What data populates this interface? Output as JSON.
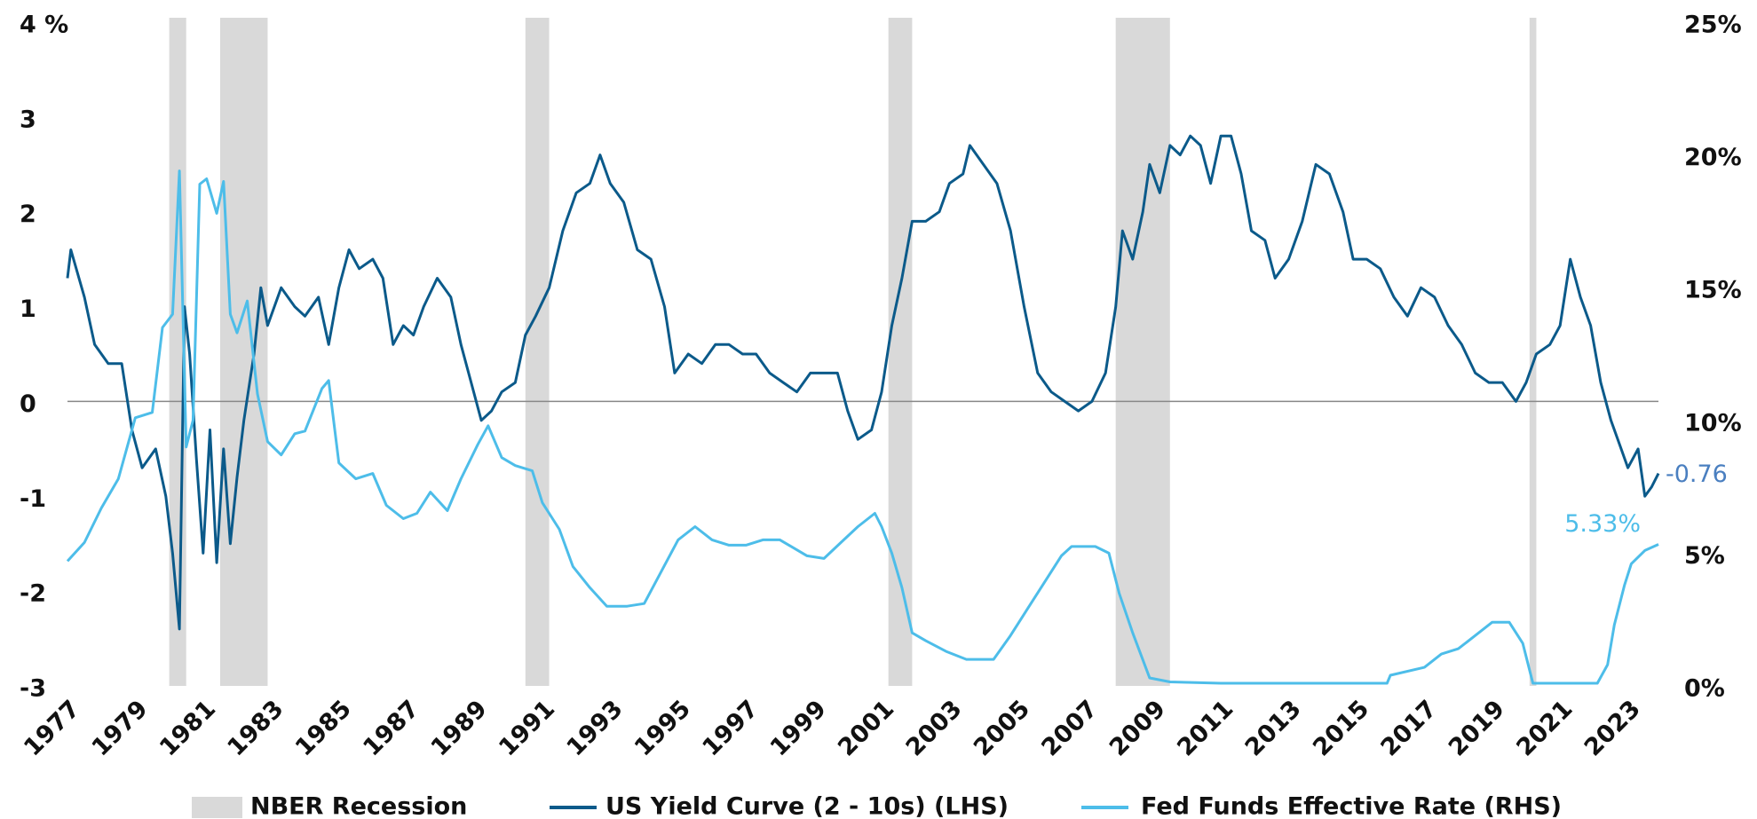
{
  "chart_data": {
    "type": "line",
    "xlim": [
      1977,
      2023.9
    ],
    "xticks": [
      1977,
      1979,
      1981,
      1983,
      1985,
      1987,
      1989,
      1991,
      1993,
      1995,
      1997,
      1999,
      2001,
      2003,
      2005,
      2007,
      2009,
      2011,
      2013,
      2015,
      2017,
      2019,
      2021,
      2023
    ],
    "ylim": [
      -3,
      4
    ],
    "yticks": [
      -3,
      -2,
      -1,
      0,
      1,
      2,
      3,
      {
        "value": 4,
        "label": "4 %"
      }
    ],
    "y2lim": [
      0,
      25
    ],
    "y2ticks": [
      {
        "value": 0,
        "label": "0%"
      },
      {
        "value": 5,
        "label": "5%"
      },
      {
        "value": 10,
        "label": "10%"
      },
      {
        "value": 15,
        "label": "15%"
      },
      {
        "value": 20,
        "label": "20%"
      },
      {
        "value": 25,
        "label": "25%"
      }
    ],
    "zero_line": true,
    "recessions": {
      "name": "NBER Recession",
      "color": "#d9d9d9",
      "spans": [
        [
          1980.0,
          1980.5
        ],
        [
          1981.5,
          1982.9
        ],
        [
          1990.5,
          1991.2
        ],
        [
          2001.2,
          2001.9
        ],
        [
          2007.9,
          2009.5
        ],
        [
          2020.1,
          2020.3
        ]
      ]
    },
    "series": [
      {
        "name": "US Yield Curve (2 - 10s) (LHS)",
        "color": "#0b5a8a",
        "axis": "y",
        "end_label": "-0.76",
        "end_label_color": "#4a7fc0",
        "x": [
          1977.0,
          1977.1,
          1977.5,
          1977.8,
          1978.2,
          1978.6,
          1978.9,
          1979.2,
          1979.6,
          1979.9,
          1980.1,
          1980.3,
          1980.45,
          1980.6,
          1980.8,
          1981.0,
          1981.2,
          1981.4,
          1981.6,
          1981.8,
          1982.0,
          1982.2,
          1982.5,
          1982.7,
          1982.9,
          1983.3,
          1983.7,
          1984.0,
          1984.4,
          1984.7,
          1985.0,
          1985.3,
          1985.6,
          1986.0,
          1986.3,
          1986.6,
          1986.9,
          1987.2,
          1987.5,
          1987.9,
          1988.3,
          1988.6,
          1988.9,
          1989.2,
          1989.5,
          1989.8,
          1990.2,
          1990.5,
          1990.8,
          1991.2,
          1991.6,
          1992.0,
          1992.4,
          1992.7,
          1993.0,
          1993.4,
          1993.8,
          1994.2,
          1994.6,
          1994.9,
          1995.3,
          1995.7,
          1996.1,
          1996.5,
          1996.9,
          1997.3,
          1997.7,
          1998.1,
          1998.5,
          1998.9,
          1999.3,
          1999.7,
          2000.0,
          2000.3,
          2000.7,
          2001.0,
          2001.3,
          2001.6,
          2001.9,
          2002.3,
          2002.7,
          2003.0,
          2003.4,
          2003.6,
          2004.0,
          2004.4,
          2004.8,
          2005.2,
          2005.6,
          2006.0,
          2006.4,
          2006.8,
          2007.2,
          2007.6,
          2007.9,
          2008.1,
          2008.4,
          2008.7,
          2008.9,
          2009.2,
          2009.5,
          2009.8,
          2010.1,
          2010.4,
          2010.7,
          2011.0,
          2011.3,
          2011.6,
          2011.9,
          2012.3,
          2012.6,
          2013.0,
          2013.4,
          2013.8,
          2014.2,
          2014.6,
          2014.9,
          2015.3,
          2015.7,
          2016.1,
          2016.5,
          2016.9,
          2017.3,
          2017.7,
          2018.1,
          2018.5,
          2018.9,
          2019.3,
          2019.7,
          2020.0,
          2020.3,
          2020.7,
          2021.0,
          2021.3,
          2021.6,
          2021.9,
          2022.2,
          2022.5,
          2022.8,
          2023.0,
          2023.3,
          2023.5,
          2023.7,
          2023.9
        ],
        "values": [
          1.3,
          1.6,
          1.1,
          0.6,
          0.4,
          0.4,
          -0.3,
          -0.7,
          -0.5,
          -1.0,
          -1.6,
          -2.4,
          1.0,
          0.5,
          -0.6,
          -1.6,
          -0.3,
          -1.7,
          -0.5,
          -1.5,
          -0.8,
          -0.2,
          0.5,
          1.2,
          0.8,
          1.2,
          1.0,
          0.9,
          1.1,
          0.6,
          1.2,
          1.6,
          1.4,
          1.5,
          1.3,
          0.6,
          0.8,
          0.7,
          1.0,
          1.3,
          1.1,
          0.6,
          0.2,
          -0.2,
          -0.1,
          0.1,
          0.2,
          0.7,
          0.9,
          1.2,
          1.8,
          2.2,
          2.3,
          2.6,
          2.3,
          2.1,
          1.6,
          1.5,
          1.0,
          0.3,
          0.5,
          0.4,
          0.6,
          0.6,
          0.5,
          0.5,
          0.3,
          0.2,
          0.1,
          0.3,
          0.3,
          0.3,
          -0.1,
          -0.4,
          -0.3,
          0.1,
          0.8,
          1.3,
          1.9,
          1.9,
          2.0,
          2.3,
          2.4,
          2.7,
          2.5,
          2.3,
          1.8,
          1.0,
          0.3,
          0.1,
          0.0,
          -0.1,
          0.0,
          0.3,
          1.0,
          1.8,
          1.5,
          2.0,
          2.5,
          2.2,
          2.7,
          2.6,
          2.8,
          2.7,
          2.3,
          2.8,
          2.8,
          2.4,
          1.8,
          1.7,
          1.3,
          1.5,
          1.9,
          2.5,
          2.4,
          2.0,
          1.5,
          1.5,
          1.4,
          1.1,
          0.9,
          1.2,
          1.1,
          0.8,
          0.6,
          0.3,
          0.2,
          0.2,
          0.0,
          0.2,
          0.5,
          0.6,
          0.8,
          1.5,
          1.1,
          0.8,
          0.2,
          -0.2,
          -0.5,
          -0.7,
          -0.5,
          -1.0,
          -0.9,
          -0.76
        ]
      },
      {
        "name": "Fed Funds Effective Rate (RHS)",
        "color": "#4dbde9",
        "axis": "y2",
        "end_label": "5.33%",
        "end_label_color": "#4dbde9",
        "x": [
          1977.0,
          1977.5,
          1978.0,
          1978.5,
          1979.0,
          1979.5,
          1979.8,
          1980.1,
          1980.3,
          1980.5,
          1980.7,
          1980.9,
          1981.1,
          1981.4,
          1981.6,
          1981.8,
          1982.0,
          1982.3,
          1982.6,
          1982.9,
          1983.3,
          1983.7,
          1984.0,
          1984.5,
          1984.7,
          1985.0,
          1985.5,
          1986.0,
          1986.4,
          1986.9,
          1987.3,
          1987.7,
          1988.2,
          1988.6,
          1989.1,
          1989.4,
          1989.8,
          1990.2,
          1990.7,
          1991.0,
          1991.5,
          1991.9,
          1992.4,
          1992.9,
          1993.5,
          1994.0,
          1994.5,
          1995.0,
          1995.5,
          1996.0,
          1996.5,
          1997.0,
          1997.5,
          1998.0,
          1998.8,
          1999.3,
          1999.8,
          2000.3,
          2000.8,
          2001.0,
          2001.3,
          2001.6,
          2001.9,
          2002.3,
          2002.9,
          2003.5,
          2004.3,
          2004.8,
          2005.3,
          2005.8,
          2006.3,
          2006.6,
          2007.3,
          2007.7,
          2008.0,
          2008.4,
          2008.9,
          2009.5,
          2011.0,
          2013.0,
          2015.9,
          2016.0,
          2017.0,
          2017.5,
          2018.0,
          2018.5,
          2019.0,
          2019.5,
          2019.9,
          2020.2,
          2022.1,
          2022.4,
          2022.6,
          2022.9,
          2023.1,
          2023.5,
          2023.9
        ],
        "values": [
          4.7,
          5.4,
          6.7,
          7.8,
          10.1,
          10.3,
          13.5,
          14,
          19.4,
          9.0,
          10,
          18.9,
          19.1,
          17.8,
          19,
          14,
          13.3,
          14.5,
          11.0,
          9.2,
          8.7,
          9.5,
          9.6,
          11.2,
          11.5,
          8.4,
          7.8,
          8.0,
          6.8,
          6.3,
          6.5,
          7.3,
          6.6,
          7.8,
          9.1,
          9.8,
          8.6,
          8.3,
          8.1,
          6.9,
          5.9,
          4.5,
          3.7,
          3.0,
          3.0,
          3.1,
          4.3,
          5.5,
          6.0,
          5.5,
          5.3,
          5.3,
          5.5,
          5.5,
          4.9,
          4.8,
          5.4,
          6.0,
          6.5,
          6.0,
          5.0,
          3.7,
          2.0,
          1.7,
          1.3,
          1.0,
          1.0,
          1.9,
          2.9,
          3.9,
          4.9,
          5.25,
          5.25,
          5.0,
          3.5,
          2.0,
          0.3,
          0.15,
          0.1,
          0.1,
          0.1,
          0.4,
          0.7,
          1.2,
          1.4,
          1.9,
          2.4,
          2.4,
          1.6,
          0.1,
          0.1,
          0.8,
          2.3,
          3.8,
          4.6,
          5.1,
          5.33
        ]
      }
    ]
  }
}
